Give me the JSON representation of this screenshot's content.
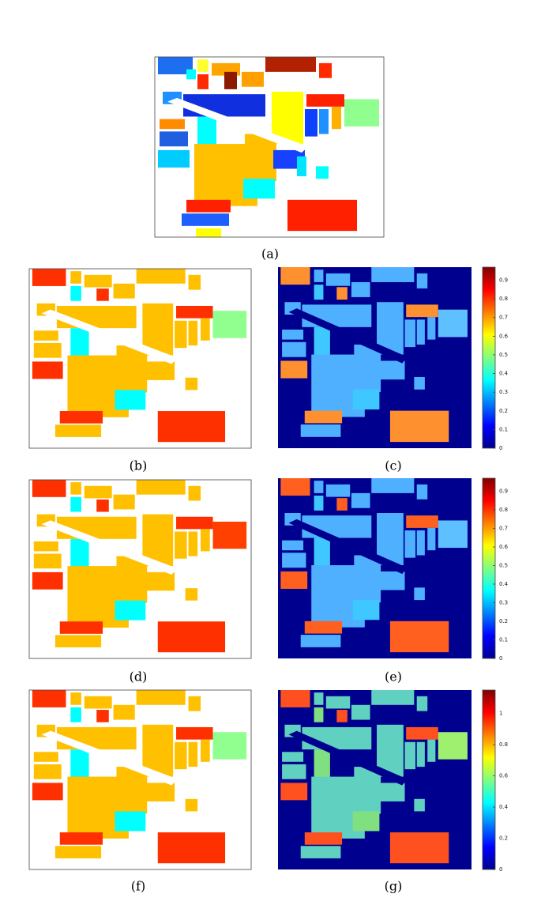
{
  "panels": [
    {
      "label": "(a)"
    },
    {
      "label": "(b)"
    },
    {
      "label": "(c)",
      "colorbar": {
        "ylim": [
          0,
          0.97
        ],
        "yticks": [
          0,
          0.1,
          0.2,
          0.3,
          0.4,
          0.5,
          0.6,
          0.7,
          0.8,
          0.9
        ]
      }
    },
    {
      "label": "(d)"
    },
    {
      "label": "(e)",
      "colorbar": {
        "ylim": [
          0,
          0.97
        ],
        "yticks": [
          0,
          0.1,
          0.2,
          0.3,
          0.4,
          0.5,
          0.6,
          0.7,
          0.8,
          0.9
        ]
      }
    },
    {
      "label": "(f)"
    },
    {
      "label": "(g)",
      "colorbar": {
        "ylim": [
          0,
          1.15
        ],
        "yticks": [
          0,
          0.2,
          0.4,
          0.6,
          0.8,
          1
        ]
      }
    }
  ]
}
